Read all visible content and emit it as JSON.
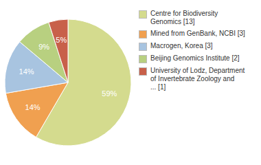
{
  "chart_data": {
    "type": "pie",
    "categories": [
      "Centre for Biodiversity\nGenomics [13]",
      "Mined from GenBank, NCBI [3]",
      "Macrogen, Korea [3]",
      "Beijing Genomics Institute [2]",
      "University of Lodz, Department\nof Invertebrate Zoology and\n... [1]"
    ],
    "values": [
      59,
      14,
      14,
      9,
      5
    ],
    "value_labels": [
      "59%",
      "14%",
      "14%",
      "9%",
      "5%"
    ],
    "colors": [
      "#d4db8e",
      "#f0a050",
      "#a8c4e0",
      "#b8d080",
      "#c8604a"
    ],
    "data_labels": true,
    "legend": "right"
  }
}
